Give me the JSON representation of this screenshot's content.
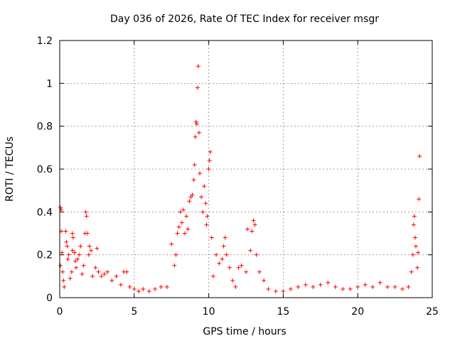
{
  "chart_data": {
    "type": "scatter",
    "title": "Day 036 of 2026, Rate Of TEC Index for receiver msgr",
    "xlabel": "GPS time / hours",
    "ylabel": "ROTI / TECUs",
    "xlim": [
      0,
      25
    ],
    "ylim": [
      0,
      1.2
    ],
    "xticks": [
      "0",
      "5",
      "10",
      "15",
      "20",
      "25"
    ],
    "yticks": [
      "0",
      "0.2",
      "0.4",
      "0.6",
      "0.8",
      "1",
      "1.2"
    ],
    "grid": true,
    "marker": "+",
    "color": "#ff0000",
    "series": [
      {
        "points": [
          [
            0.05,
            0.42
          ],
          [
            0.1,
            0.41
          ],
          [
            0.1,
            0.31
          ],
          [
            0.15,
            0.21
          ],
          [
            0.05,
            0.15
          ],
          [
            0.2,
            0.12
          ],
          [
            0.25,
            0.08
          ],
          [
            0.3,
            0.05
          ],
          [
            0.4,
            0.31
          ],
          [
            0.45,
            0.26
          ],
          [
            0.5,
            0.24
          ],
          [
            0.55,
            0.18
          ],
          [
            0.6,
            0.2
          ],
          [
            0.7,
            0.09
          ],
          [
            0.8,
            0.12
          ],
          [
            0.85,
            0.22
          ],
          [
            0.85,
            0.3
          ],
          [
            0.9,
            0.28
          ],
          [
            1.0,
            0.21
          ],
          [
            1.05,
            0.17
          ],
          [
            1.1,
            0.14
          ],
          [
            1.2,
            0.18
          ],
          [
            1.3,
            0.2
          ],
          [
            1.4,
            0.24
          ],
          [
            1.5,
            0.11
          ],
          [
            1.6,
            0.15
          ],
          [
            1.7,
            0.3
          ],
          [
            1.75,
            0.4
          ],
          [
            1.8,
            0.38
          ],
          [
            1.85,
            0.3
          ],
          [
            1.95,
            0.2
          ],
          [
            2.0,
            0.24
          ],
          [
            2.1,
            0.22
          ],
          [
            2.2,
            0.1
          ],
          [
            2.4,
            0.14
          ],
          [
            2.5,
            0.23
          ],
          [
            2.6,
            0.12
          ],
          [
            2.8,
            0.1
          ],
          [
            3.0,
            0.11
          ],
          [
            3.2,
            0.12
          ],
          [
            3.5,
            0.08
          ],
          [
            3.8,
            0.1
          ],
          [
            4.1,
            0.06
          ],
          [
            4.3,
            0.12
          ],
          [
            4.5,
            0.12
          ],
          [
            4.7,
            0.05
          ],
          [
            5.0,
            0.04
          ],
          [
            5.3,
            0.03
          ],
          [
            5.6,
            0.04
          ],
          [
            6.0,
            0.03
          ],
          [
            6.4,
            0.04
          ],
          [
            6.8,
            0.05
          ],
          [
            7.2,
            0.05
          ],
          [
            7.5,
            0.25
          ],
          [
            7.7,
            0.15
          ],
          [
            7.8,
            0.2
          ],
          [
            7.9,
            0.3
          ],
          [
            8.0,
            0.33
          ],
          [
            8.1,
            0.4
          ],
          [
            8.2,
            0.35
          ],
          [
            8.3,
            0.41
          ],
          [
            8.4,
            0.3
          ],
          [
            8.5,
            0.38
          ],
          [
            8.6,
            0.32
          ],
          [
            8.7,
            0.45
          ],
          [
            8.8,
            0.47
          ],
          [
            8.9,
            0.48
          ],
          [
            9.0,
            0.55
          ],
          [
            9.05,
            0.62
          ],
          [
            9.1,
            0.75
          ],
          [
            9.15,
            0.82
          ],
          [
            9.2,
            0.81
          ],
          [
            9.25,
            0.98
          ],
          [
            9.3,
            1.08
          ],
          [
            9.35,
            0.77
          ],
          [
            9.4,
            0.58
          ],
          [
            9.5,
            0.47
          ],
          [
            9.6,
            0.4
          ],
          [
            9.7,
            0.52
          ],
          [
            9.8,
            0.44
          ],
          [
            9.85,
            0.34
          ],
          [
            9.9,
            0.38
          ],
          [
            10.0,
            0.6
          ],
          [
            10.05,
            0.64
          ],
          [
            10.1,
            0.68
          ],
          [
            10.2,
            0.28
          ],
          [
            10.3,
            0.1
          ],
          [
            10.5,
            0.2
          ],
          [
            10.7,
            0.16
          ],
          [
            10.9,
            0.18
          ],
          [
            11.0,
            0.24
          ],
          [
            11.1,
            0.28
          ],
          [
            11.2,
            0.2
          ],
          [
            11.4,
            0.14
          ],
          [
            11.6,
            0.08
          ],
          [
            11.8,
            0.05
          ],
          [
            12.0,
            0.14
          ],
          [
            12.2,
            0.15
          ],
          [
            12.5,
            0.12
          ],
          [
            12.6,
            0.32
          ],
          [
            12.8,
            0.22
          ],
          [
            12.9,
            0.31
          ],
          [
            13.0,
            0.36
          ],
          [
            13.1,
            0.34
          ],
          [
            13.2,
            0.2
          ],
          [
            13.4,
            0.12
          ],
          [
            13.7,
            0.08
          ],
          [
            14.0,
            0.04
          ],
          [
            14.5,
            0.03
          ],
          [
            15.0,
            0.03
          ],
          [
            15.5,
            0.04
          ],
          [
            16.0,
            0.05
          ],
          [
            16.5,
            0.06
          ],
          [
            17.0,
            0.05
          ],
          [
            17.5,
            0.06
          ],
          [
            18.0,
            0.07
          ],
          [
            18.5,
            0.05
          ],
          [
            19.0,
            0.04
          ],
          [
            19.5,
            0.04
          ],
          [
            20.0,
            0.05
          ],
          [
            20.5,
            0.06
          ],
          [
            21.0,
            0.05
          ],
          [
            21.5,
            0.07
          ],
          [
            22.0,
            0.05
          ],
          [
            22.5,
            0.05
          ],
          [
            23.0,
            0.04
          ],
          [
            23.4,
            0.05
          ],
          [
            23.6,
            0.12
          ],
          [
            23.7,
            0.2
          ],
          [
            23.75,
            0.34
          ],
          [
            23.8,
            0.38
          ],
          [
            23.85,
            0.28
          ],
          [
            23.9,
            0.24
          ],
          [
            24.0,
            0.14
          ],
          [
            24.05,
            0.21
          ],
          [
            24.1,
            0.46
          ],
          [
            24.15,
            0.66
          ]
        ]
      }
    ]
  }
}
